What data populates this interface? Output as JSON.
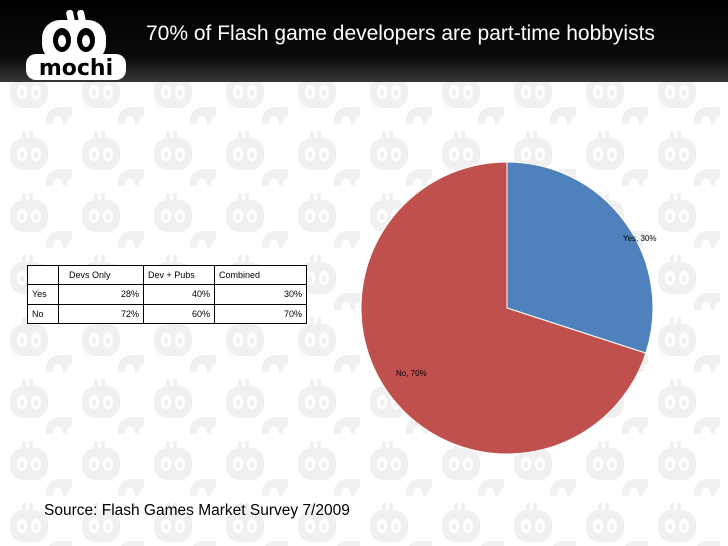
{
  "header": {
    "title": "70% of Flash game developers are part-time hobbyists",
    "logo_text": "mochi"
  },
  "table": {
    "columns": [
      "",
      "Devs Only",
      "Dev + Pubs",
      "Combined"
    ],
    "rows": [
      {
        "label": "Yes",
        "cells": [
          "28%",
          "40%",
          "30%"
        ]
      },
      {
        "label": "No",
        "cells": [
          "72%",
          "60%",
          "70%"
        ]
      }
    ]
  },
  "source": "Source: Flash Games Market Survey 7/2009",
  "chart_data": {
    "type": "pie",
    "title": "",
    "slices": [
      {
        "label": "Yes",
        "value": 30,
        "data_label": "Yes, 30%",
        "color": "#4f81bd"
      },
      {
        "label": "No",
        "value": 70,
        "data_label": "No, 70%",
        "color": "#c0504d"
      }
    ],
    "start_angle_deg": 0,
    "direction": "clockwise",
    "legend": "none"
  },
  "colors": {
    "header_bg": "#000000",
    "watermark": "#eeeeee",
    "slice_edge": "#ffffff"
  }
}
